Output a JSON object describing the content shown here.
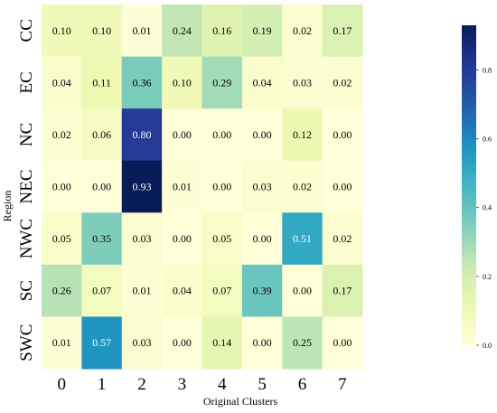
{
  "chart_data": {
    "type": "heatmap",
    "title": "",
    "xlabel": "Original Clusters",
    "ylabel": "Region",
    "x_categories": [
      "0",
      "1",
      "2",
      "3",
      "4",
      "5",
      "6",
      "7"
    ],
    "y_categories": [
      "CC",
      "EC",
      "NC",
      "NEC",
      "NWC",
      "SC",
      "SWC"
    ],
    "values": [
      [
        0.1,
        0.1,
        0.01,
        0.24,
        0.16,
        0.19,
        0.02,
        0.17
      ],
      [
        0.04,
        0.11,
        0.36,
        0.1,
        0.29,
        0.04,
        0.03,
        0.02
      ],
      [
        0.02,
        0.06,
        0.8,
        0.0,
        0.0,
        0.0,
        0.12,
        0.0
      ],
      [
        0.0,
        0.0,
        0.93,
        0.01,
        0.0,
        0.03,
        0.02,
        0.0
      ],
      [
        0.05,
        0.35,
        0.03,
        0.0,
        0.05,
        0.0,
        0.51,
        0.02
      ],
      [
        0.26,
        0.07,
        0.01,
        0.04,
        0.07,
        0.39,
        0.0,
        0.17
      ],
      [
        0.01,
        0.57,
        0.03,
        0.0,
        0.14,
        0.0,
        0.25,
        0.0
      ]
    ],
    "colormap": "YlGnBu",
    "vmin": 0.0,
    "vmax": 0.93,
    "colorbar_ticks": [
      "0.0",
      "0.2",
      "0.4",
      "0.6",
      "0.8"
    ],
    "annotations_format": "0.00",
    "grid": false,
    "colorbar_position": "right"
  }
}
